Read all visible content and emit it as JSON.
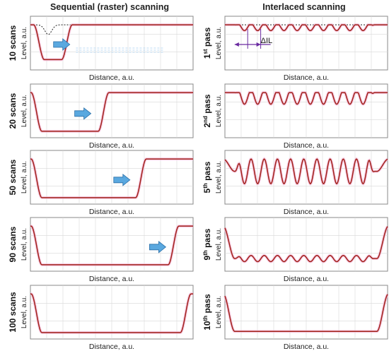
{
  "columns": {
    "left_title": "Sequential (raster) scanning",
    "right_title": "Interlaced scanning"
  },
  "axis": {
    "xlabel": "Distance, a.u.",
    "ylabel": "Level, a.u."
  },
  "left_panels": [
    {
      "label": "10 scans",
      "depth": 0.9,
      "start": 0.085,
      "end": 0.205,
      "arrow": 0.19,
      "dotted_ref": true
    },
    {
      "label": "20 scans",
      "depth": 1.0,
      "start": 0.07,
      "end": 0.43,
      "arrow": 0.32
    },
    {
      "label": "50 scans",
      "depth": 1.0,
      "start": 0.07,
      "end": 0.66,
      "arrow": 0.56
    },
    {
      "label": "90 scans",
      "depth": 1.0,
      "start": 0.07,
      "end": 0.86,
      "arrow": 0.78
    },
    {
      "label": "100 scans",
      "depth": 1.0,
      "start": 0.07,
      "end": 0.935,
      "arrow": null
    }
  ],
  "right_panels": [
    {
      "label_main": "1",
      "label_sup": "st",
      "label_rest": " pass",
      "amp": 0.09,
      "base": 0.06,
      "edges": 0.0,
      "dil": "ΔIL",
      "dotted_ref": true
    },
    {
      "label_main": "2",
      "label_sup": "nd",
      "label_rest": " pass",
      "amp": 0.18,
      "base": 0.12,
      "edges": 0.0
    },
    {
      "label_main": "5",
      "label_sup": "th",
      "label_rest": " pass",
      "amp": 0.32,
      "base": 0.32,
      "edges": 1.0
    },
    {
      "label_main": "9",
      "label_sup": "th",
      "label_rest": " pass",
      "amp": 0.08,
      "base": 0.84,
      "edges": 1.0
    },
    {
      "label_main": "10",
      "label_sup": "th",
      "label_rest": " pass",
      "amp": 0.0,
      "base": 0.97,
      "edges": 1.0
    }
  ],
  "colors": {
    "curve": "#a02018",
    "glow": "#f4b8d8",
    "arrow": "#5aa8df",
    "dil": "#6a2aa0",
    "grid": "#d8d8d8",
    "frame": "#888888"
  }
}
